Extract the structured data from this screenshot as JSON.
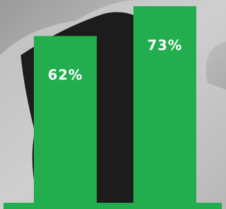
{
  "chart_data": {
    "type": "bar",
    "categories": [
      null,
      null
    ],
    "values": [
      62,
      73
    ],
    "value_labels": [
      "62%",
      "73%"
    ],
    "color": "#22ad4e"
  }
}
